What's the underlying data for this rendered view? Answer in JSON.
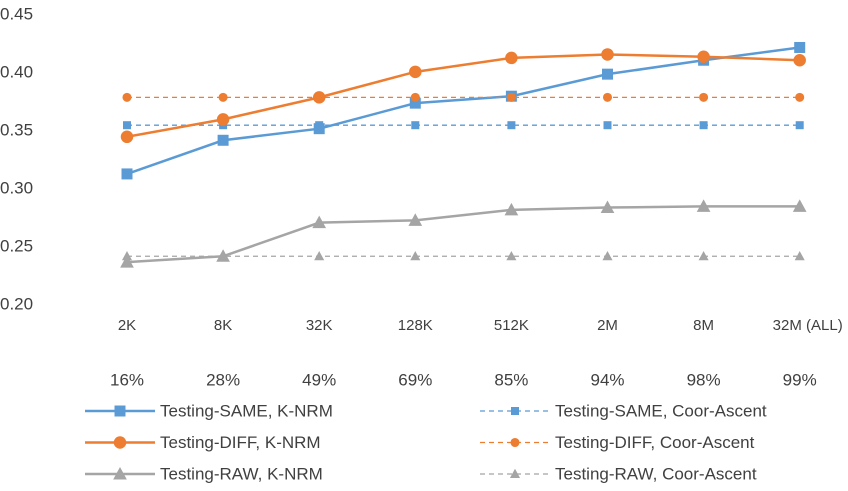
{
  "chart_data": {
    "type": "line",
    "categories": [
      "2K",
      "8K",
      "32K",
      "128K",
      "512K",
      "2M",
      "8M",
      "32M (ALL)"
    ],
    "category_sublabels": [
      "16%",
      "28%",
      "49%",
      "69%",
      "85%",
      "94%",
      "98%",
      "99%"
    ],
    "series": [
      {
        "name": "Testing-SAME, K-NRM",
        "color": "#5b9bd5",
        "marker": "square",
        "dashed": false,
        "values": [
          0.313,
          0.342,
          0.352,
          0.374,
          0.38,
          0.399,
          0.411,
          0.422
        ]
      },
      {
        "name": "Testing-SAME, Coor-Ascent",
        "color": "#5b9bd5",
        "marker": "square",
        "dashed": true,
        "values": [
          0.355,
          0.355,
          0.355,
          0.355,
          0.355,
          0.355,
          0.355,
          0.355
        ]
      },
      {
        "name": "Testing-DIFF, K-NRM",
        "color": "#ed7d31",
        "marker": "circle",
        "dashed": false,
        "values": [
          0.345,
          0.36,
          0.379,
          0.401,
          0.413,
          0.416,
          0.414,
          0.411
        ]
      },
      {
        "name": "Testing-DIFF, Coor-Ascent",
        "color": "#ed7d31",
        "marker": "circle",
        "dashed": true,
        "values": [
          0.379,
          0.379,
          0.379,
          0.379,
          0.379,
          0.379,
          0.379,
          0.379
        ]
      },
      {
        "name": "Testing-RAW, K-NRM",
        "color": "#a5a5a5",
        "marker": "triangle",
        "dashed": false,
        "values": [
          0.237,
          0.242,
          0.271,
          0.273,
          0.282,
          0.284,
          0.285,
          0.285
        ]
      },
      {
        "name": "Testing-RAW, Coor-Ascent",
        "color": "#a5a5a5",
        "marker": "triangle",
        "dashed": true,
        "values": [
          0.242,
          0.242,
          0.242,
          0.242,
          0.242,
          0.242,
          0.242,
          0.242
        ]
      }
    ],
    "ylim": [
      0.2,
      0.45
    ],
    "yticks": [
      {
        "value": 0.2,
        "label": "0.20"
      },
      0.25,
      {
        "value": 0.3,
        "label": "0.30"
      },
      0.35,
      {
        "value": 0.4,
        "label": "0.40"
      },
      0.45
    ],
    "grid": false,
    "legend": "bottom"
  }
}
